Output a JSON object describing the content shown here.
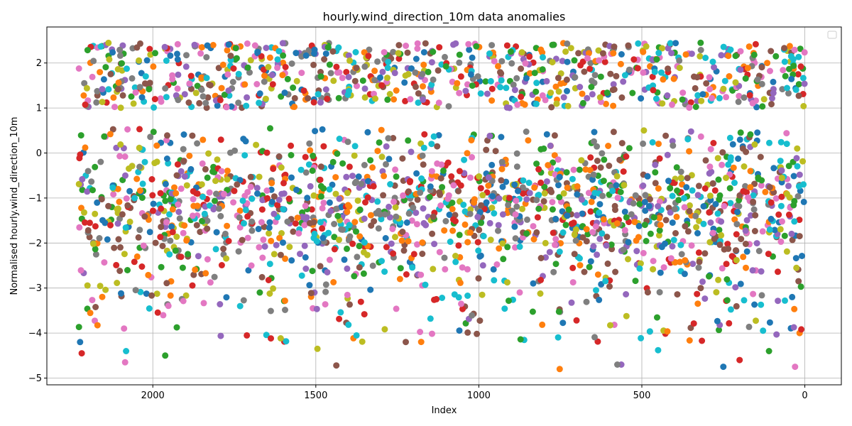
{
  "chart_data": {
    "type": "scatter",
    "title": "hourly.wind_direction_10m data anomalies",
    "xlabel": "Index",
    "ylabel": "Normalised hourly.wind_direction_10m",
    "x_inverted": true,
    "xlim": [
      2325,
      -112
    ],
    "ylim": [
      -5.15,
      2.8
    ],
    "x_ticks": [
      2000,
      1500,
      1000,
      500,
      0
    ],
    "x_tick_labels": [
      "2000",
      "1500",
      "1000",
      "500",
      "0"
    ],
    "y_ticks": [
      2,
      1,
      0,
      -1,
      -2,
      -3,
      -4,
      -5
    ],
    "y_tick_labels": [
      "2",
      "1",
      "0",
      "−1",
      "−2",
      "−3",
      "−4",
      "−5"
    ],
    "grid": true,
    "legend": {
      "placement": "upper-right",
      "entries": []
    },
    "palette": [
      "#1f77b4",
      "#ff7f0e",
      "#2ca02c",
      "#d62728",
      "#9467bd",
      "#8c564b",
      "#e377c2",
      "#7f7f7f",
      "#bcbd22",
      "#17becf"
    ],
    "marker": "circle",
    "series_description": {
      "x_range": [
        0,
        2227
      ],
      "upper_band": [
        1.0,
        2.45
      ],
      "lower_band": [
        -3.1,
        0.55
      ],
      "notable_outliers": [
        {
          "x": 2223,
          "y": -4.2
        },
        {
          "x": 2218,
          "y": -4.45
        },
        {
          "x": 2085,
          "y": -4.65
        },
        {
          "x": 2082,
          "y": -4.4
        },
        {
          "x": 1962,
          "y": -4.5
        },
        {
          "x": 1437,
          "y": -4.72
        },
        {
          "x": 1495,
          "y": -4.35
        },
        {
          "x": 752,
          "y": -4.8
        },
        {
          "x": 563,
          "y": -4.7
        },
        {
          "x": 575,
          "y": -4.7
        },
        {
          "x": 250,
          "y": -4.75
        },
        {
          "x": 200,
          "y": -4.6
        },
        {
          "x": 30,
          "y": -4.75
        },
        {
          "x": 450,
          "y": -4.38
        },
        {
          "x": 110,
          "y": -4.4
        }
      ]
    }
  }
}
